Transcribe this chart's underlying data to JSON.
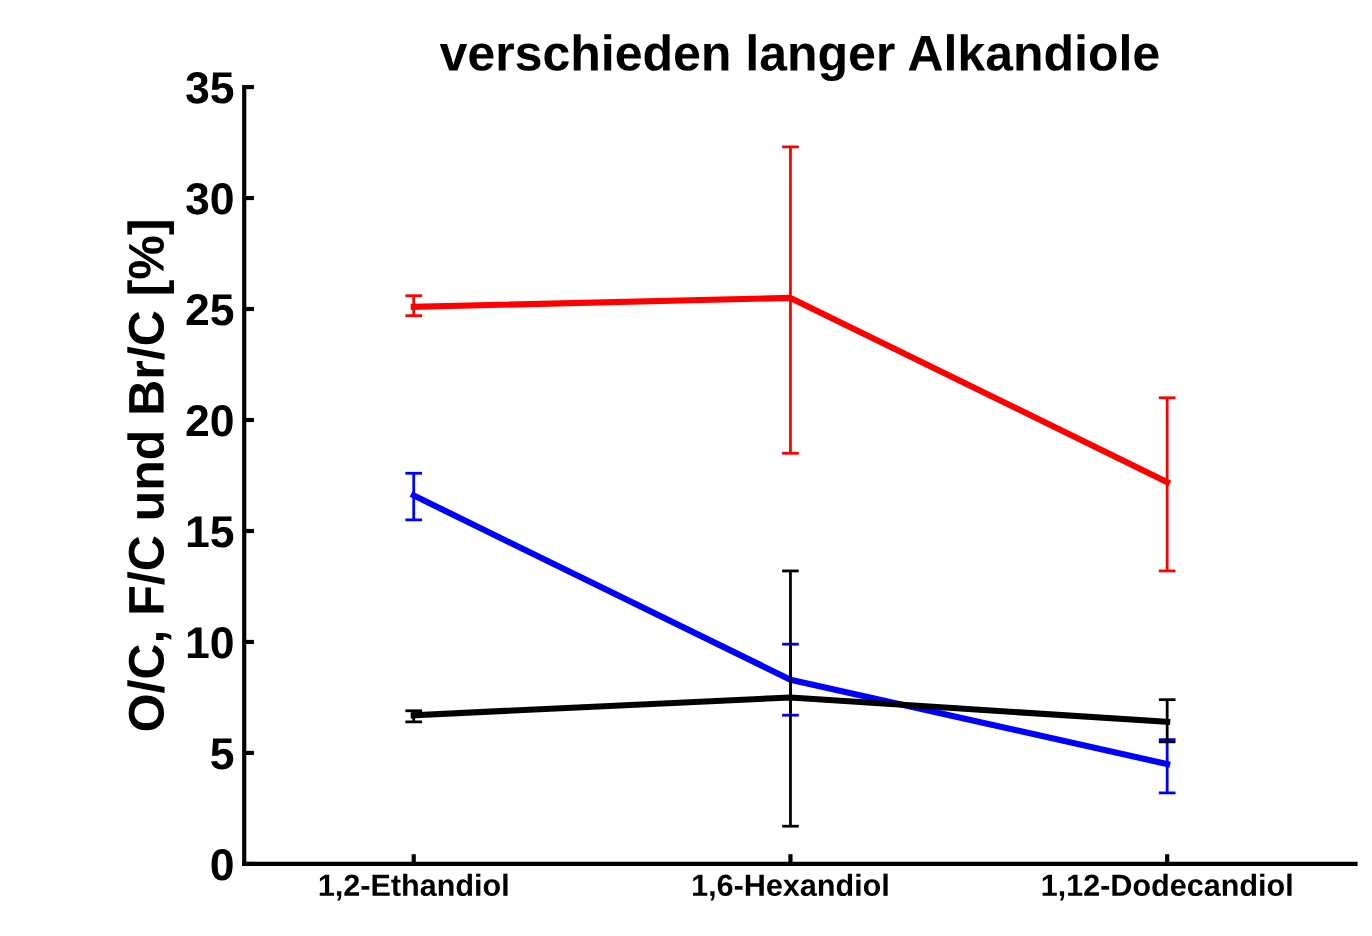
{
  "chart_data": {
    "type": "line",
    "title": "verschieden langer Alkandiole",
    "ylabel": "O/C, F/C und Br/C [%]",
    "categories": [
      "1,2-Ethandiol",
      "1,6-Hexandiol",
      "1,12-Dodecandiol"
    ],
    "series": [
      {
        "color": "#ff0000",
        "values": [
          25.1,
          25.5,
          17.2
        ],
        "errors": [
          [
            24.7,
            25.6
          ],
          [
            18.5,
            32.3
          ],
          [
            13.2,
            21.0
          ]
        ]
      },
      {
        "color": "#0000ff",
        "values": [
          16.6,
          8.3,
          4.5
        ],
        "errors": [
          [
            15.5,
            17.6
          ],
          [
            6.7,
            9.9
          ],
          [
            3.2,
            5.6
          ]
        ]
      },
      {
        "color": "#000000",
        "values": [
          6.7,
          7.5,
          6.4
        ],
        "errors": [
          [
            6.4,
            6.9
          ],
          [
            1.7,
            13.2
          ],
          [
            5.5,
            7.4
          ]
        ]
      }
    ],
    "ylim": [
      0,
      35
    ],
    "yticks": [
      0,
      5,
      10,
      15,
      20,
      25,
      30,
      35
    ],
    "marker": "none",
    "line_style": "solid"
  }
}
